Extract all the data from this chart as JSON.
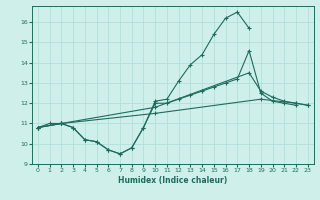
{
  "xlabel": "Humidex (Indice chaleur)",
  "xlim": [
    -0.5,
    23.5
  ],
  "ylim": [
    9.0,
    16.8
  ],
  "yticks": [
    9,
    10,
    11,
    12,
    13,
    14,
    15,
    16
  ],
  "xticks": [
    0,
    1,
    2,
    3,
    4,
    5,
    6,
    7,
    8,
    9,
    10,
    11,
    12,
    13,
    14,
    15,
    16,
    17,
    18,
    19,
    20,
    21,
    22,
    23
  ],
  "bg_color": "#cff0ea",
  "line_color": "#1e6b5e",
  "grid_color": "#aaddd6",
  "line1_x": [
    0,
    1,
    2,
    3,
    4,
    5,
    6,
    7,
    8,
    9,
    10,
    11,
    12,
    13,
    14,
    15,
    16,
    17,
    18
  ],
  "line1_y": [
    10.8,
    11.0,
    11.0,
    10.8,
    10.2,
    10.1,
    9.7,
    9.5,
    9.8,
    10.8,
    12.1,
    12.2,
    13.1,
    13.9,
    14.4,
    15.4,
    16.2,
    16.5,
    15.7
  ],
  "line2_x": [
    0,
    2,
    3,
    4,
    5,
    6,
    7,
    8,
    9,
    10,
    11,
    12,
    13,
    14,
    15,
    16,
    17,
    18,
    19,
    20,
    21,
    22
  ],
  "line2_y": [
    10.8,
    11.0,
    10.8,
    10.2,
    10.1,
    9.7,
    9.5,
    9.8,
    10.8,
    12.0,
    12.0,
    12.2,
    12.4,
    12.6,
    12.8,
    13.0,
    13.2,
    14.6,
    12.5,
    12.1,
    12.0,
    11.9
  ],
  "line3_x": [
    0,
    2,
    10,
    18,
    19,
    20,
    21,
    22,
    23
  ],
  "line3_y": [
    10.8,
    11.0,
    11.8,
    13.5,
    12.6,
    12.3,
    12.1,
    12.0,
    11.9
  ],
  "line4_x": [
    0,
    2,
    10,
    19,
    22,
    23
  ],
  "line4_y": [
    10.8,
    11.0,
    11.5,
    12.2,
    12.0,
    11.9
  ]
}
